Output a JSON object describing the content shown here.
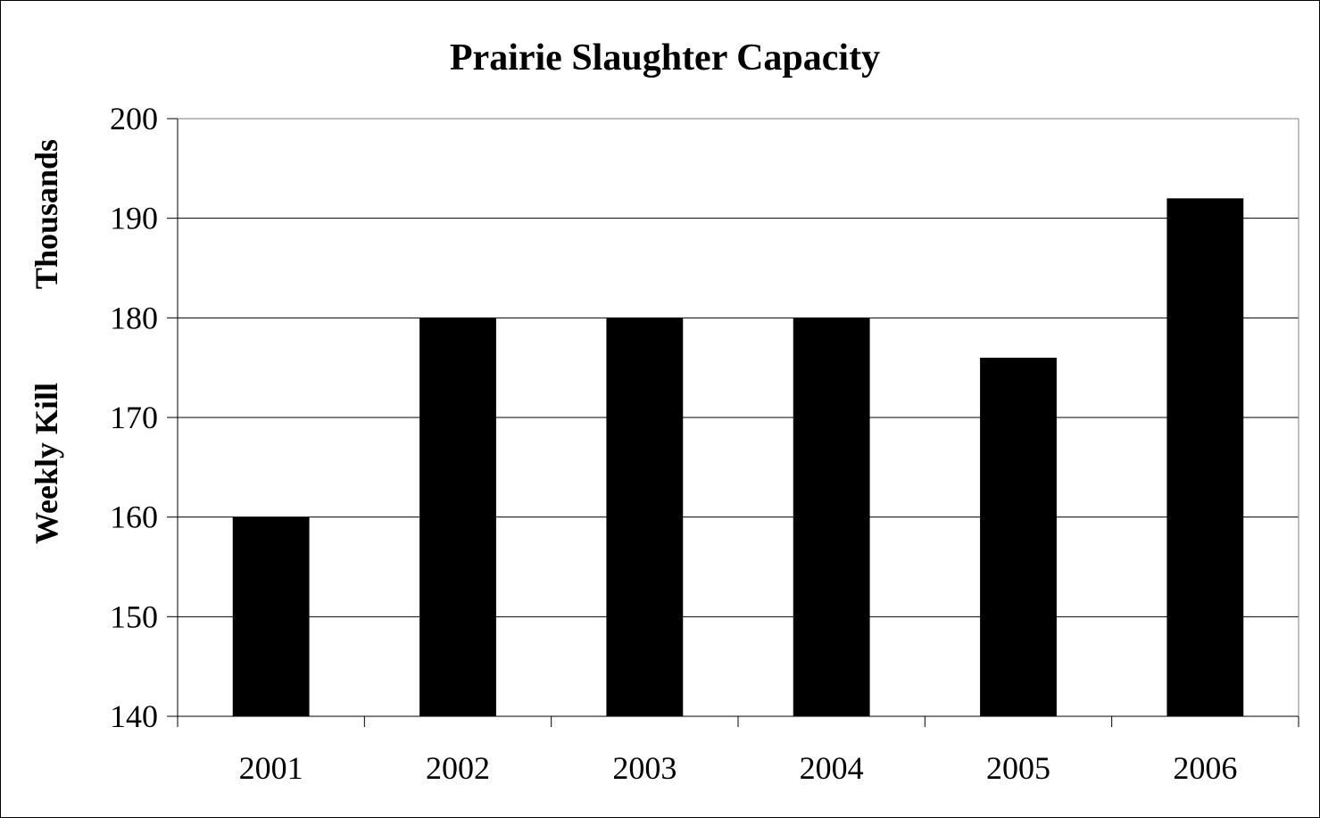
{
  "chart_data": {
    "type": "bar",
    "title": "Prairie Slaughter Capacity",
    "ylabel_left": "Weekly Kill",
    "ylabel_right": "Thousands",
    "xlabel": "",
    "categories": [
      "2001",
      "2002",
      "2003",
      "2004",
      "2005",
      "2006"
    ],
    "values": [
      160,
      180,
      180,
      180,
      176,
      192
    ],
    "ylim": [
      140,
      200
    ],
    "yticks": [
      "200",
      "190",
      "180",
      "170",
      "160",
      "150",
      "140"
    ],
    "grid": true,
    "legend": "none",
    "bar_color": "#000000",
    "grid_color": "#000000",
    "background_color": "#ffffff"
  }
}
